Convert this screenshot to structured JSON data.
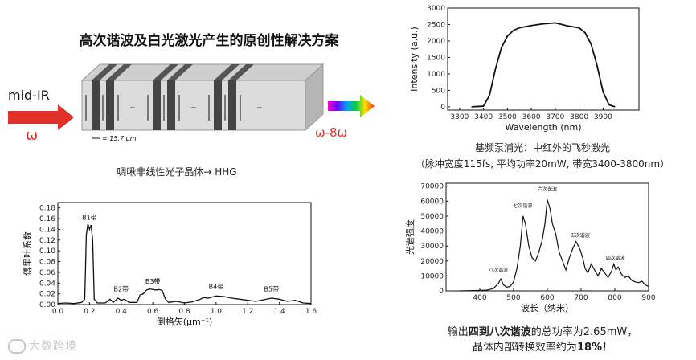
{
  "title": "高次谐波及白光激光产生的原创性解决方案",
  "crystal": {
    "input_label": "mid-IR",
    "input_symbol": "ω",
    "output_label": "ω-8ω",
    "period_label": "= 15.7 μm",
    "dots": "--",
    "caption": "啁啾非线性光子晶体→ HHG"
  },
  "pump_caption_1": "基频泵浦光：中红外的飞秒激光",
  "pump_caption_2": "（脉冲宽度115fs, 平均功率20mW, 带宽3400-3800nm）",
  "result_caption_1_pre": "输出",
  "result_caption_1_bold": "四到八次谐波",
  "result_caption_1_post": "的总功率为2.65mW，",
  "result_caption_2_pre": "晶体内部转换效率约为",
  "result_caption_2_bold": "18%！",
  "watermark": "大数跨境",
  "colors": {
    "arrow_red": "#e0302a",
    "crystal_face": "#d9d9d9",
    "stripe": "#444444"
  },
  "chart_data": [
    {
      "type": "line",
      "title": "",
      "xlabel": "Wavelength (nm)",
      "ylabel": "Intensity (a.u.)",
      "xlim": [
        3250,
        4050
      ],
      "ylim": [
        -100,
        3000
      ],
      "xticks": [
        3300,
        3400,
        3500,
        3600,
        3700,
        3800,
        3900
      ],
      "yticks": [
        0,
        500,
        1000,
        1500,
        2000,
        2500,
        3000
      ],
      "series": [
        {
          "x": [
            3350,
            3400,
            3425,
            3450,
            3475,
            3500,
            3525,
            3550,
            3600,
            3650,
            3700,
            3750,
            3800,
            3825,
            3850,
            3875,
            3900,
            3925,
            3950
          ],
          "y": [
            0,
            20,
            350,
            1150,
            1800,
            2150,
            2320,
            2400,
            2470,
            2520,
            2550,
            2460,
            2400,
            2250,
            1900,
            1250,
            450,
            60,
            0
          ]
        }
      ]
    },
    {
      "type": "line",
      "title": "",
      "xlabel": "倒格矢(μm⁻¹)",
      "ylabel": "傅里叶系数",
      "xlim": [
        0.0,
        1.6
      ],
      "ylim": [
        0.0,
        0.19
      ],
      "xticks": [
        0.0,
        0.2,
        0.4,
        0.6,
        0.8,
        1.0,
        1.2,
        1.4,
        1.6
      ],
      "yticks": [
        0.0,
        0.02,
        0.04,
        0.06,
        0.08,
        0.1,
        0.12,
        0.14,
        0.16,
        0.18
      ],
      "annotations": [
        {
          "text": "B1带",
          "x": 0.2,
          "y": 0.158
        },
        {
          "text": "B2带",
          "x": 0.4,
          "y": 0.025
        },
        {
          "text": "B3带",
          "x": 0.6,
          "y": 0.039
        },
        {
          "text": "B4带",
          "x": 1.0,
          "y": 0.029
        },
        {
          "text": "B5带",
          "x": 1.35,
          "y": 0.025
        }
      ],
      "series": [
        {
          "x": [
            0.0,
            0.05,
            0.1,
            0.15,
            0.17,
            0.18,
            0.19,
            0.2,
            0.21,
            0.22,
            0.23,
            0.25,
            0.3,
            0.33,
            0.35,
            0.38,
            0.4,
            0.42,
            0.45,
            0.5,
            0.52,
            0.54,
            0.56,
            0.58,
            0.6,
            0.62,
            0.64,
            0.66,
            0.68,
            0.7,
            0.75,
            0.8,
            0.85,
            0.9,
            0.92,
            0.95,
            1.0,
            1.05,
            1.1,
            1.15,
            1.2,
            1.25,
            1.3,
            1.35,
            1.4,
            1.45,
            1.5,
            1.55,
            1.6
          ],
          "y": [
            0.002,
            0.003,
            0.002,
            0.004,
            0.01,
            0.13,
            0.15,
            0.14,
            0.148,
            0.12,
            0.01,
            0.003,
            0.003,
            0.01,
            0.004,
            0.012,
            0.008,
            0.01,
            0.004,
            0.004,
            0.018,
            0.02,
            0.027,
            0.029,
            0.028,
            0.027,
            0.028,
            0.026,
            0.01,
            0.004,
            0.006,
            0.003,
            0.005,
            0.01,
            0.013,
            0.012,
            0.016,
            0.015,
            0.012,
            0.01,
            0.008,
            0.006,
            0.009,
            0.012,
            0.01,
            0.006,
            0.008,
            0.003,
            0.002
          ]
        }
      ]
    },
    {
      "type": "line",
      "title": "",
      "xlabel": "波长（纳米）",
      "ylabel": "光谱强度",
      "xlim": [
        300,
        900
      ],
      "ylim": [
        0,
        72000
      ],
      "xticks": [
        400,
        500,
        600,
        700,
        800,
        900
      ],
      "yticks": [
        0,
        10000,
        20000,
        30000,
        40000,
        50000,
        60000,
        70000
      ],
      "annotations": [
        {
          "text": "八次谐波",
          "x": 455,
          "y": 13000
        },
        {
          "text": "七次谐波",
          "x": 527,
          "y": 56000
        },
        {
          "text": "六次谐波",
          "x": 600,
          "y": 67000
        },
        {
          "text": "五次谐波",
          "x": 697,
          "y": 36000
        },
        {
          "text": "四次谐波",
          "x": 802,
          "y": 21000
        }
      ],
      "series": [
        {
          "x": [
            340,
            380,
            420,
            440,
            455,
            462,
            470,
            480,
            490,
            500,
            510,
            520,
            528,
            535,
            545,
            555,
            565,
            575,
            585,
            593,
            600,
            608,
            615,
            625,
            635,
            645,
            655,
            665,
            675,
            685,
            692,
            698,
            705,
            712,
            720,
            730,
            740,
            750,
            760,
            770,
            780,
            790,
            797,
            803,
            810,
            820,
            830,
            840,
            850,
            860,
            870,
            880,
            890,
            900
          ],
          "y": [
            0,
            200,
            500,
            1500,
            5000,
            8000,
            4000,
            2500,
            3000,
            6000,
            15000,
            30000,
            50000,
            45000,
            30000,
            22000,
            20000,
            26000,
            34000,
            45000,
            61000,
            55000,
            45000,
            38000,
            26000,
            20000,
            14000,
            22000,
            28000,
            33000,
            30000,
            27000,
            22000,
            15000,
            12000,
            18000,
            14000,
            10000,
            15000,
            12000,
            9000,
            13000,
            18000,
            14000,
            16000,
            11000,
            9000,
            10000,
            7000,
            6000,
            5500,
            6500,
            4000,
            3000
          ]
        }
      ]
    }
  ]
}
